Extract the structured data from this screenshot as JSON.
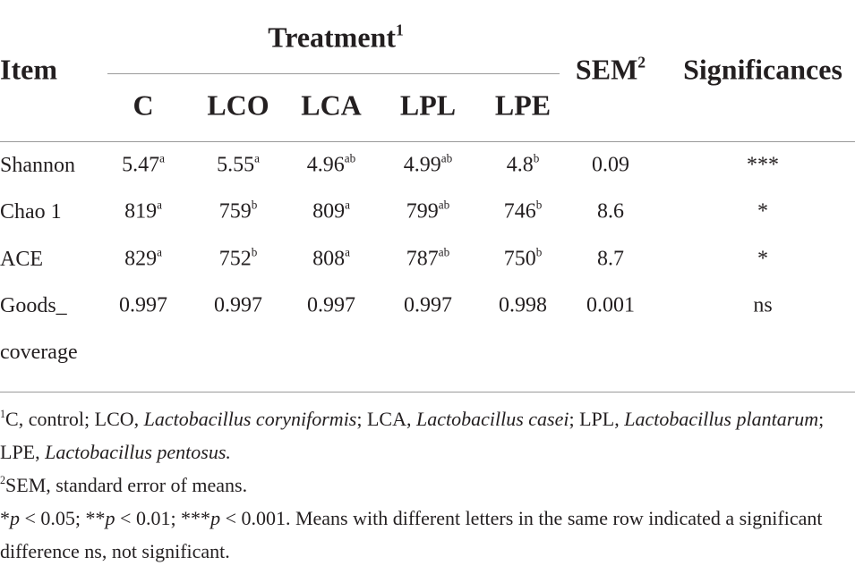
{
  "table": {
    "header": {
      "item": "Item",
      "group": "Treatment",
      "group_note": "1",
      "columns": [
        "C",
        "LCO",
        "LCA",
        "LPL",
        "LPE"
      ],
      "sem": "SEM",
      "sem_note": "2",
      "significance": "Significances"
    },
    "rows": [
      {
        "item": "Shannon",
        "cells": [
          {
            "value": 5.47,
            "letter": "a"
          },
          {
            "value": 5.55,
            "letter": "a"
          },
          {
            "value": 4.96,
            "letter": "ab"
          },
          {
            "value": 4.99,
            "letter": "ab"
          },
          {
            "value": 4.8,
            "letter": "b"
          }
        ],
        "sem": 0.09,
        "significance": "***"
      },
      {
        "item": "Chao 1",
        "cells": [
          {
            "value": 819,
            "letter": "a"
          },
          {
            "value": 759,
            "letter": "b"
          },
          {
            "value": 809,
            "letter": "a"
          },
          {
            "value": 799,
            "letter": "ab"
          },
          {
            "value": 746,
            "letter": "b"
          }
        ],
        "sem": 8.6,
        "significance": "*"
      },
      {
        "item": "ACE",
        "cells": [
          {
            "value": 829,
            "letter": "a"
          },
          {
            "value": 752,
            "letter": "b"
          },
          {
            "value": 808,
            "letter": "a"
          },
          {
            "value": 787,
            "letter": "ab"
          },
          {
            "value": 750,
            "letter": "b"
          }
        ],
        "sem": 8.7,
        "significance": "*"
      },
      {
        "item": "Goods_ coverage",
        "cells": [
          {
            "value": 0.997
          },
          {
            "value": 0.997
          },
          {
            "value": 0.997
          },
          {
            "value": 0.997
          },
          {
            "value": 0.998
          }
        ],
        "sem": 0.001,
        "significance": "ns"
      }
    ],
    "notes": [
      {
        "marker": "1",
        "segments": [
          {
            "text": "C, control; LCO, "
          },
          {
            "text": "Lactobacillus coryniformis",
            "italic": true
          },
          {
            "text": "; LCA, "
          },
          {
            "text": "Lactobacillus casei",
            "italic": true
          },
          {
            "text": "; LPL, "
          },
          {
            "text": "Lactobacillus plantarum",
            "italic": true
          },
          {
            "text": "; LPE, "
          },
          {
            "text": "Lactobacillus pentosus.",
            "italic": true
          }
        ]
      },
      {
        "marker": "2",
        "segments": [
          {
            "text": "SEM, standard error of means."
          }
        ]
      },
      {
        "segments": [
          {
            "text": "*"
          },
          {
            "text": "p",
            "italic": true
          },
          {
            "text": " < 0.05; **"
          },
          {
            "text": "p",
            "italic": true
          },
          {
            "text": " < 0.01; ***"
          },
          {
            "text": "p",
            "italic": true
          },
          {
            "text": " < 0.001. Means with different letters in the same row indicated a significant difference ns, not significant."
          }
        ]
      }
    ]
  }
}
